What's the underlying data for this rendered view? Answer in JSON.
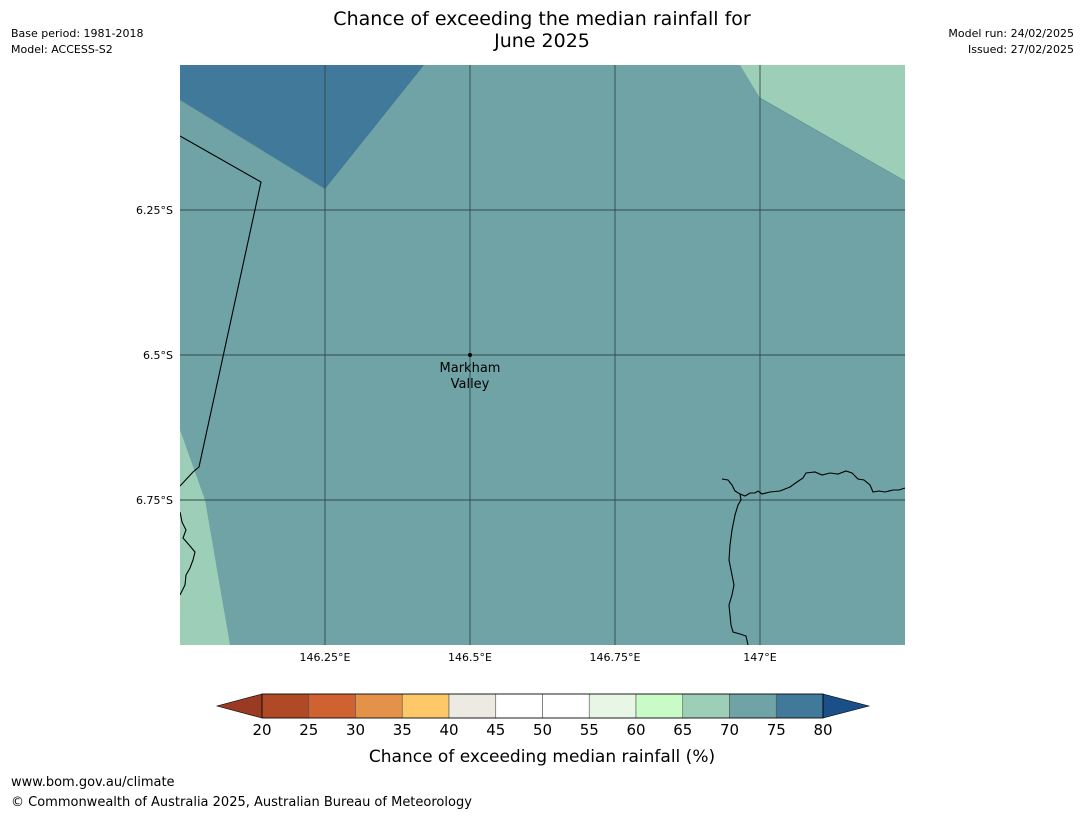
{
  "header": {
    "base_period": "Base period: 1981-2018",
    "model": "Model: ACCESS-S2",
    "model_run": "Model run: 24/02/2025",
    "issued": "Issued: 27/02/2025",
    "title_line1": "Chance of exceeding the median rainfall for",
    "title_line2": "June 2025"
  },
  "map": {
    "lon_range": [
      146.0,
      147.25
    ],
    "lat_range": [
      -6.0,
      -7.0
    ],
    "lon_ticks": [
      146.25,
      146.5,
      146.75,
      147.0
    ],
    "lat_ticks": [
      -6.25,
      -6.5,
      -6.75
    ],
    "lon_tick_labels": [
      "146.25°E",
      "146.5°E",
      "146.75°E",
      "147°E"
    ],
    "lat_tick_labels": [
      "6.25°S",
      "6.5°S",
      "6.75°S"
    ],
    "places": [
      {
        "name_line1": "Markham",
        "name_line2": "Valley",
        "lon": 146.5,
        "lat": -6.5
      }
    ],
    "background_color": "#6fa3a6",
    "zones": [
      {
        "category": "75-80",
        "color": "#41799a"
      },
      {
        "category": "65-70",
        "color": "#9dcfb8"
      }
    ]
  },
  "colorbar": {
    "title": "Chance of exceeding median rainfall (%)",
    "ticks": [
      "20",
      "25",
      "30",
      "35",
      "40",
      "45",
      "50",
      "55",
      "60",
      "65",
      "70",
      "75",
      "80"
    ],
    "under_color": "#9a3a22",
    "over_color": "#1b4f8a",
    "colors": [
      "#b04a26",
      "#cf6230",
      "#e4924a",
      "#fcc868",
      "#ede9e3",
      "#ffffff",
      "#ffffff",
      "#e8f6e6",
      "#c8fbc6",
      "#9dcfb8",
      "#6fa3a6",
      "#41799a"
    ]
  },
  "footer": {
    "url": "www.bom.gov.au/climate",
    "copyright": "© Commonwealth of Australia 2025, Australian Bureau of Meteorology"
  }
}
